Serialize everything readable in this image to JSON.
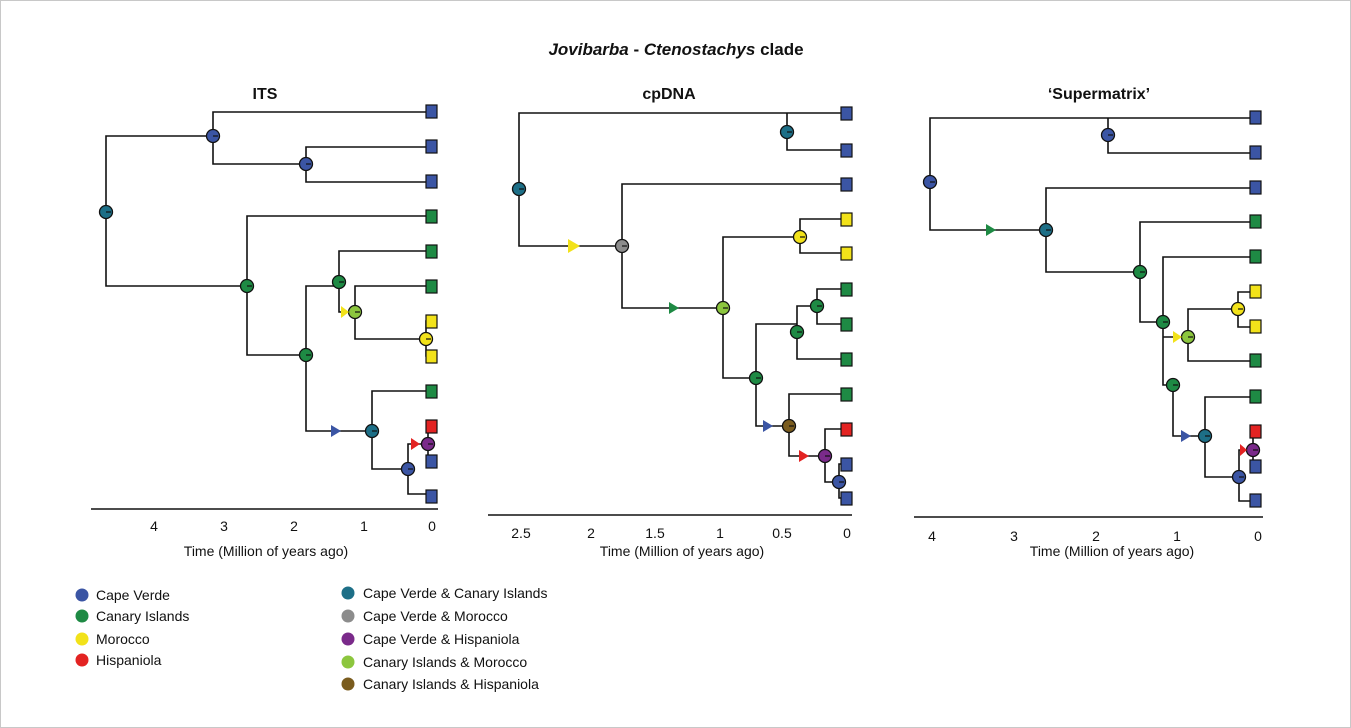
{
  "figure": {
    "title_part1": "Jovibarba",
    "title_sep": " - ",
    "title_part2": "Ctenostachys",
    "title_part3": " clade"
  },
  "colors": {
    "cape_verde": "#3b55a4",
    "canary": "#1e8a44",
    "morocco": "#f2e21a",
    "hispaniola": "#e32322",
    "cv_canary": "#1d6f87",
    "cv_morocco": "#8c8c8c",
    "cv_hispaniola": "#7a2a8a",
    "canary_morocco": "#8cc63e",
    "canary_hispaniola": "#7a5c1e"
  },
  "panels": [
    {
      "title": "ITS",
      "ticks": [
        "4",
        "3",
        "2",
        "1",
        "0"
      ],
      "xlabel": "Time (Million of years ago)",
      "tips": [
        "cape_verde",
        "cape_verde",
        "cape_verde",
        "canary",
        "canary",
        "canary",
        "morocco",
        "morocco",
        "canary",
        "hispaniola",
        "cape_verde",
        "cape_verde"
      ],
      "nodes": [
        "cv_canary",
        "cape_verde",
        "cape_verde",
        "canary",
        "canary",
        "canary",
        "canary_morocco",
        "morocco",
        "cv_canary",
        "cv_hispaniola",
        "cape_verde"
      ],
      "shifts": [
        "morocco",
        "cape_verde",
        "hispaniola"
      ]
    },
    {
      "title": "cpDNA",
      "ticks": [
        "2.5",
        "2",
        "1.5",
        "1",
        "0.5",
        "0"
      ],
      "xlabel": "Time (Million of years ago)",
      "tips": [
        "cape_verde",
        "cape_verde",
        "cape_verde",
        "morocco",
        "morocco",
        "canary",
        "canary",
        "canary",
        "canary",
        "hispaniola",
        "cape_verde",
        "cape_verde"
      ],
      "nodes": [
        "cv_canary",
        "cv_canary",
        "cv_morocco",
        "canary_morocco",
        "morocco",
        "canary",
        "canary",
        "canary",
        "canary_hispaniola",
        "cv_hispaniola",
        "cape_verde"
      ],
      "shifts": [
        "morocco",
        "canary",
        "cape_verde",
        "hispaniola"
      ]
    },
    {
      "title": "‘Supermatrix’",
      "ticks": [
        "4",
        "3",
        "2",
        "1",
        "0"
      ],
      "xlabel": "Time (Million of years ago)",
      "tips": [
        "cape_verde",
        "cape_verde",
        "cape_verde",
        "canary",
        "canary",
        "morocco",
        "morocco",
        "canary",
        "canary",
        "hispaniola",
        "cape_verde",
        "cape_verde"
      ],
      "nodes": [
        "cape_verde",
        "cape_verde",
        "cv_canary",
        "canary",
        "canary",
        "canary_morocco",
        "morocco",
        "canary",
        "cv_canary",
        "cv_hispaniola",
        "cape_verde"
      ],
      "shifts": [
        "canary",
        "morocco",
        "cape_verde",
        "hispaniola"
      ]
    }
  ],
  "legend": [
    {
      "label": "Cape Verde",
      "color_key": "cape_verde"
    },
    {
      "label": "Canary Islands",
      "color_key": "canary"
    },
    {
      "label": "Morocco",
      "color_key": "morocco"
    },
    {
      "label": "Hispaniola",
      "color_key": "hispaniola"
    },
    {
      "label": "Cape Verde & Canary Islands",
      "color_key": "cv_canary"
    },
    {
      "label": "Cape Verde & Morocco",
      "color_key": "cv_morocco"
    },
    {
      "label": "Cape Verde & Hispaniola",
      "color_key": "cv_hispaniola"
    },
    {
      "label": "Canary Islands & Morocco",
      "color_key": "canary_morocco"
    },
    {
      "label": "Canary Islands & Hispaniola",
      "color_key": "canary_hispaniola"
    }
  ]
}
